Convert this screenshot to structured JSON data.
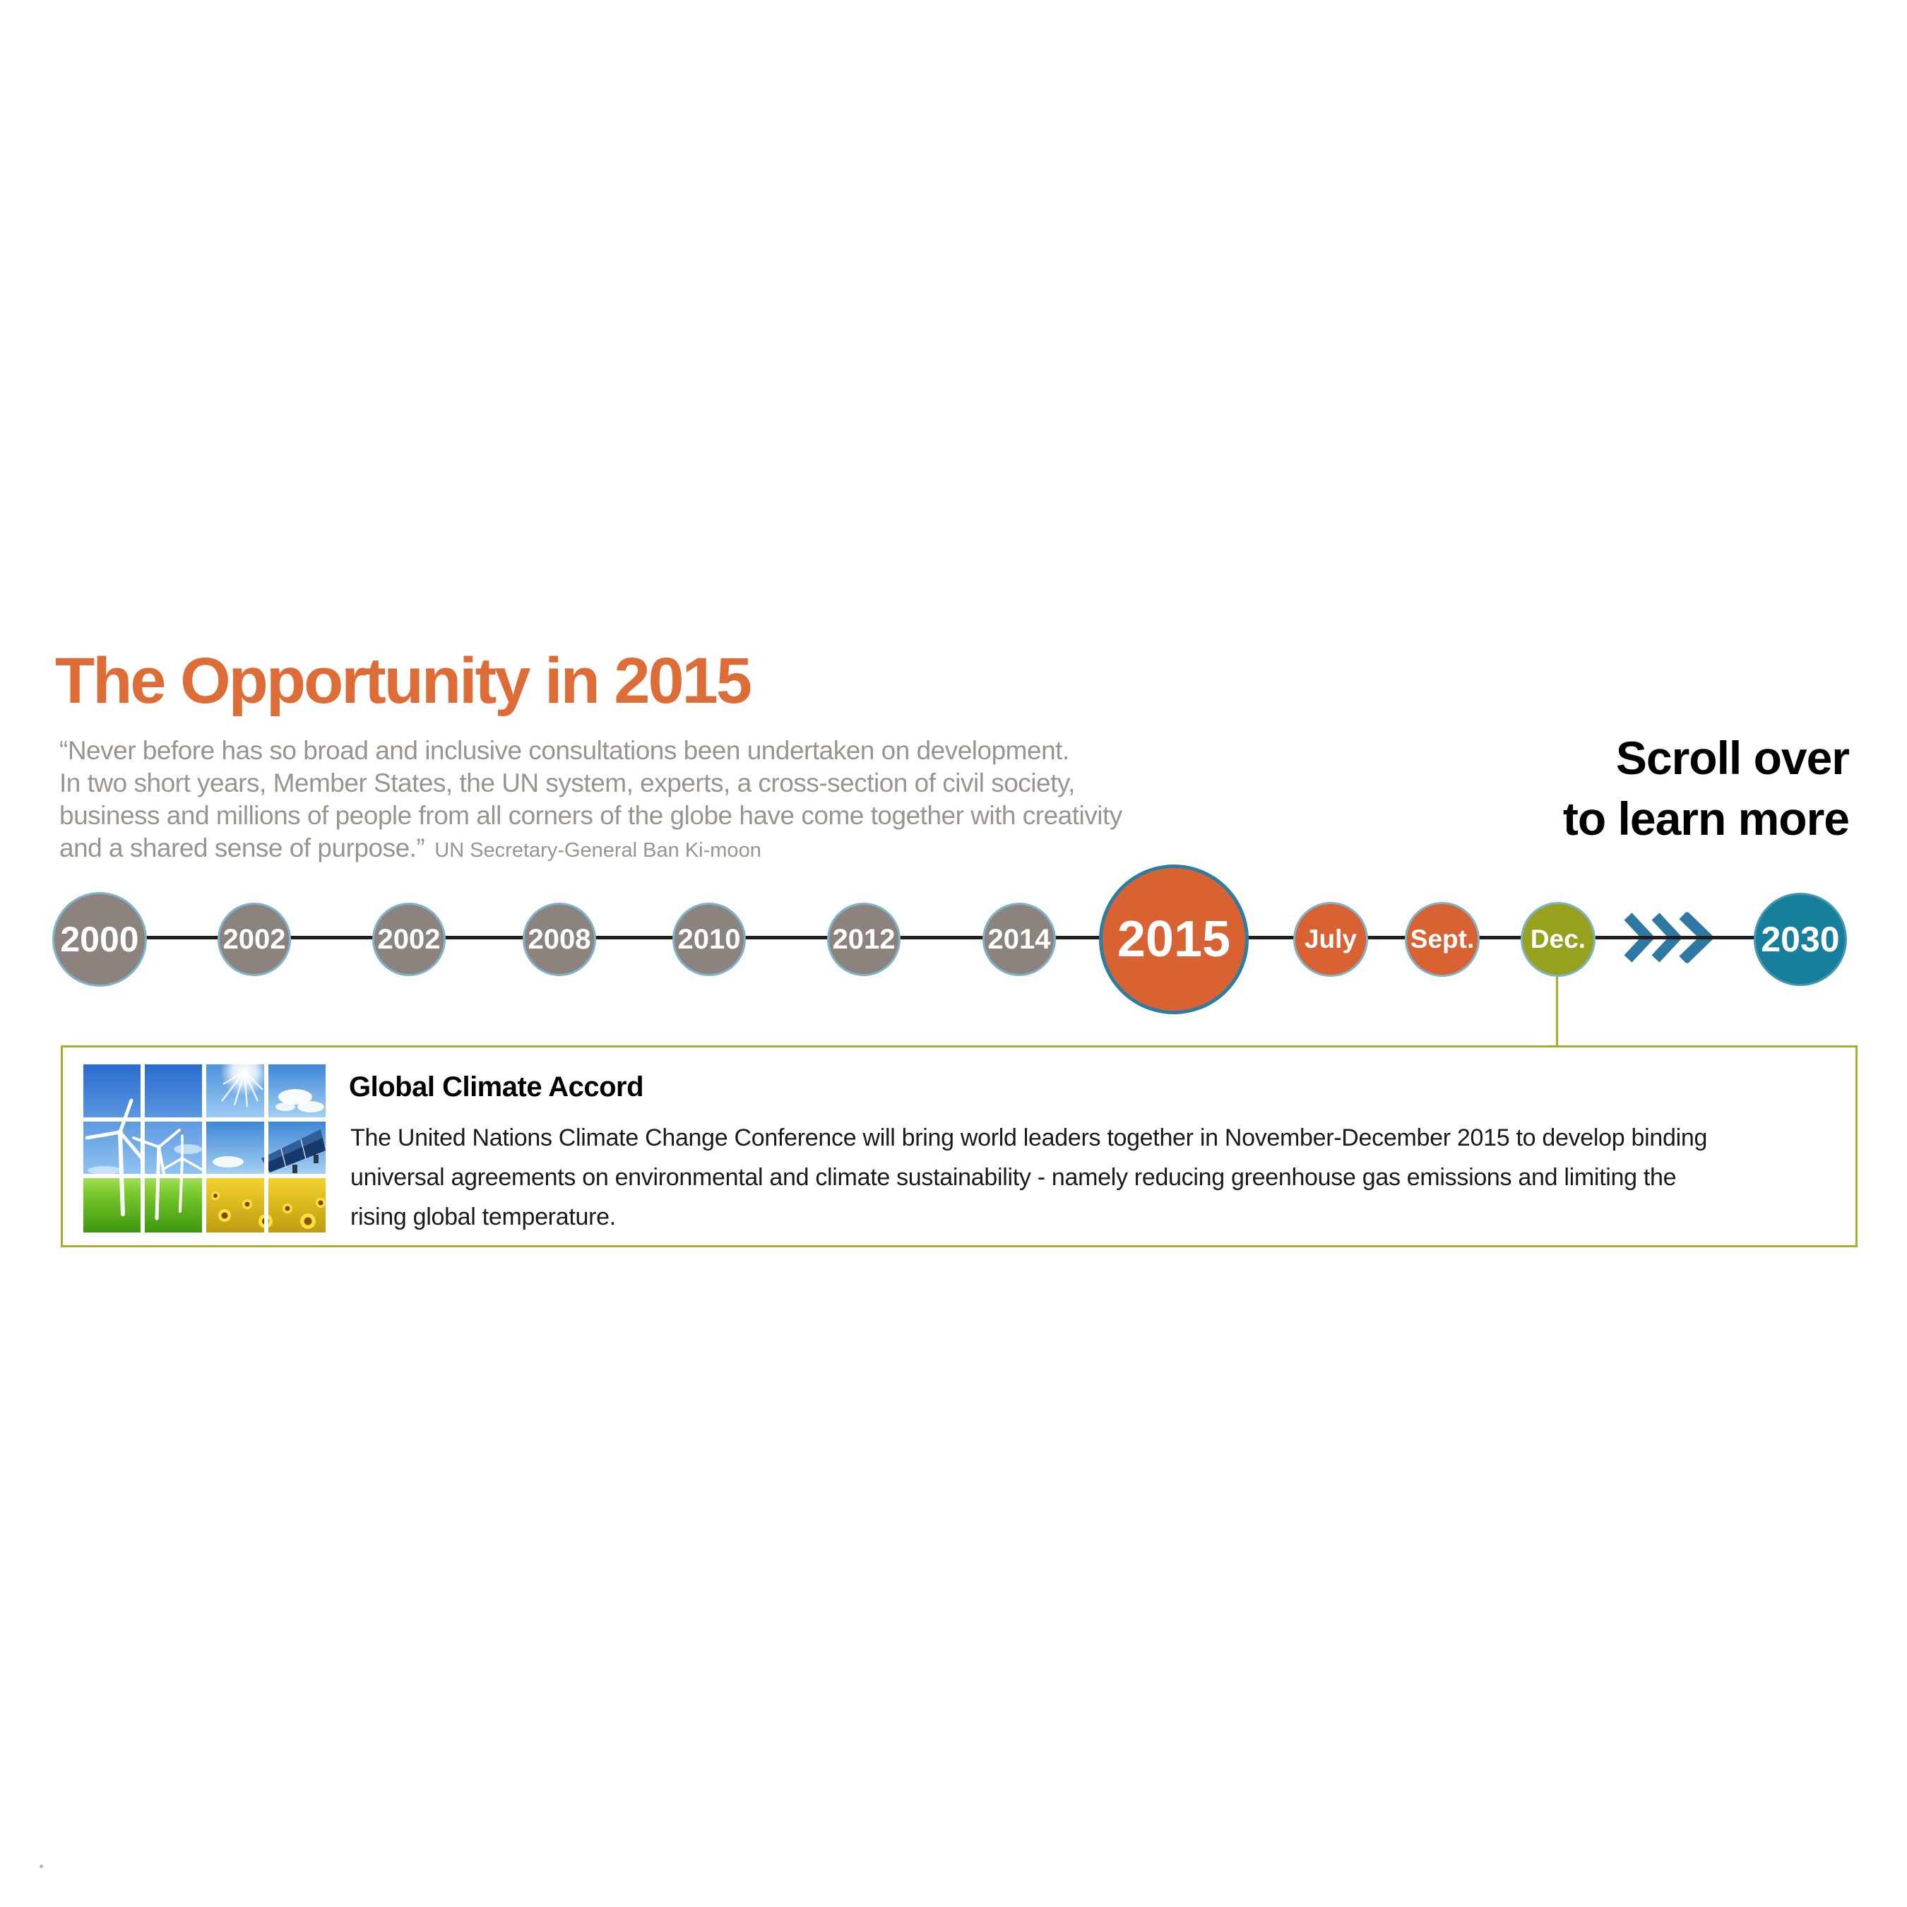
{
  "header": {
    "title": "The Opportunity in 2015"
  },
  "quote": {
    "lines": [
      "“Never before has so broad and inclusive consultations been undertaken on development.",
      "In two short years, Member States, the UN system, experts, a cross-section of civil society,",
      "business and millions of people from all corners of the globe have come together with creativity",
      "and a shared sense of purpose.”"
    ],
    "attribution": "UN Secretary-General Ban Ki-moon"
  },
  "scroll_hint": {
    "lines": [
      "Scroll over",
      "to learn more"
    ]
  },
  "timeline": {
    "nodes": [
      {
        "label": "2000",
        "kind": "start"
      },
      {
        "label": "2002",
        "kind": "past"
      },
      {
        "label": "2002",
        "kind": "past"
      },
      {
        "label": "2008",
        "kind": "past"
      },
      {
        "label": "2010",
        "kind": "past"
      },
      {
        "label": "2012",
        "kind": "past"
      },
      {
        "label": "2014",
        "kind": "past"
      },
      {
        "label": "2015",
        "kind": "focus"
      },
      {
        "label": "July",
        "kind": "month"
      },
      {
        "label": "Sept.",
        "kind": "month"
      },
      {
        "label": "Dec.",
        "kind": "month-active"
      },
      {
        "label": "",
        "kind": "chevrons",
        "icon": "fast-forward-chevrons-icon"
      },
      {
        "label": "2030",
        "kind": "future"
      }
    ]
  },
  "detail_card": {
    "title": "Global Climate Accord",
    "body_lines": [
      "The United Nations Climate Change Conference will bring world leaders together in November-December 2015 to develop binding",
      "universal agreements on environmental and climate sustainability - namely reducing greenhouse gas emissions and limiting the",
      "rising global temperature."
    ],
    "image": "renewable-energy-collage"
  },
  "colors": {
    "title_orange": "#DE6C37",
    "quote_gray": "#9A938E",
    "text_black": "#1A1A1A",
    "timeline_line": "#221E1F",
    "node_gray": "#8C837F",
    "node_orange": "#D96232",
    "node_olive": "#96A11E",
    "node_teal": "#177F9B",
    "node_ring_blue": "#7FB3CC",
    "focus_ring_teal": "#2B7EA1",
    "chevron_blue": "#2E79A3",
    "card_accent_olive": "#A9AD2B"
  }
}
